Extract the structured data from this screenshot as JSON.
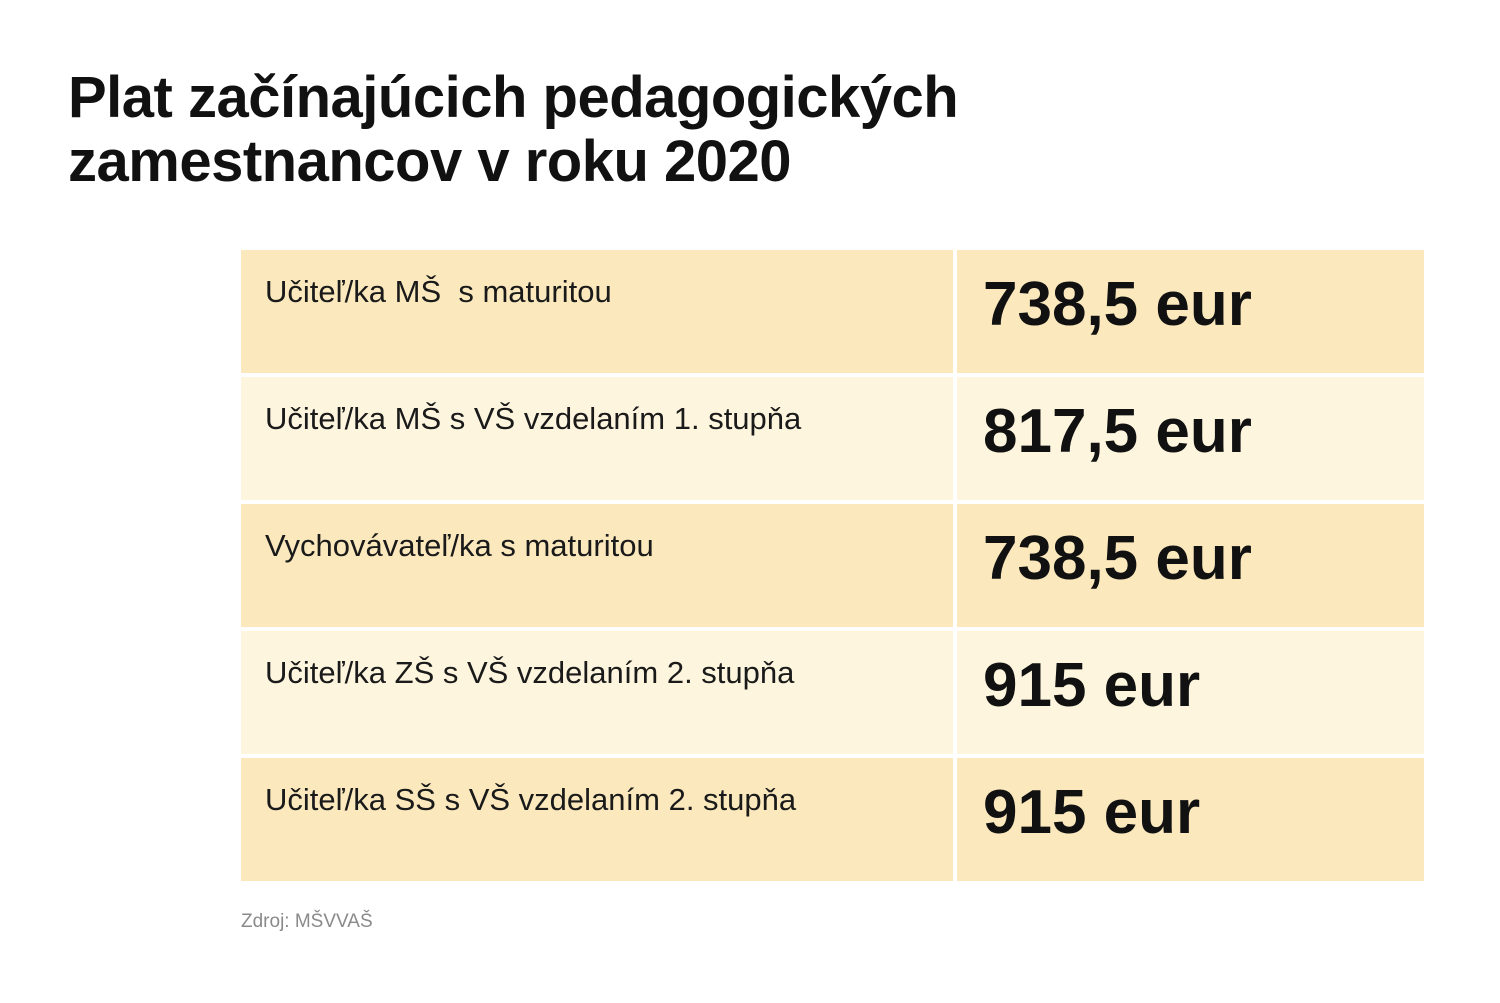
{
  "title_lines": [
    "Plat začínajúcich pedagogických",
    "zamestnancov v roku 2020"
  ],
  "chart_data": {
    "type": "table",
    "title": "Plat začínajúcich pedagogických zamestnancov v roku 2020",
    "rows": [
      {
        "label": "Učiteľ/ka MŠ  s maturitou",
        "value": "738,5 eur",
        "amount": 738.5
      },
      {
        "label": "Učiteľ/ka MŠ s VŠ vzdelaním 1. stupňa",
        "value": "817,5 eur",
        "amount": 817.5
      },
      {
        "label": "Vychovávateľ/ka s maturitou",
        "value": "738,5 eur",
        "amount": 738.5
      },
      {
        "label": "Učiteľ/ka ZŠ s VŠ vzdelaním 2. stupňa",
        "value": "915 eur",
        "amount": 915
      },
      {
        "label": "Učiteľ/ka SŠ s VŠ vzdelaním 2. stupňa",
        "value": "915 eur",
        "amount": 915
      }
    ]
  },
  "source": "Zdroj: MŠVVAŠ",
  "colors": {
    "row_dark": "#fbe9bd",
    "row_light": "#fdf5dd",
    "text": "#111111",
    "source": "#8a8a8a"
  }
}
